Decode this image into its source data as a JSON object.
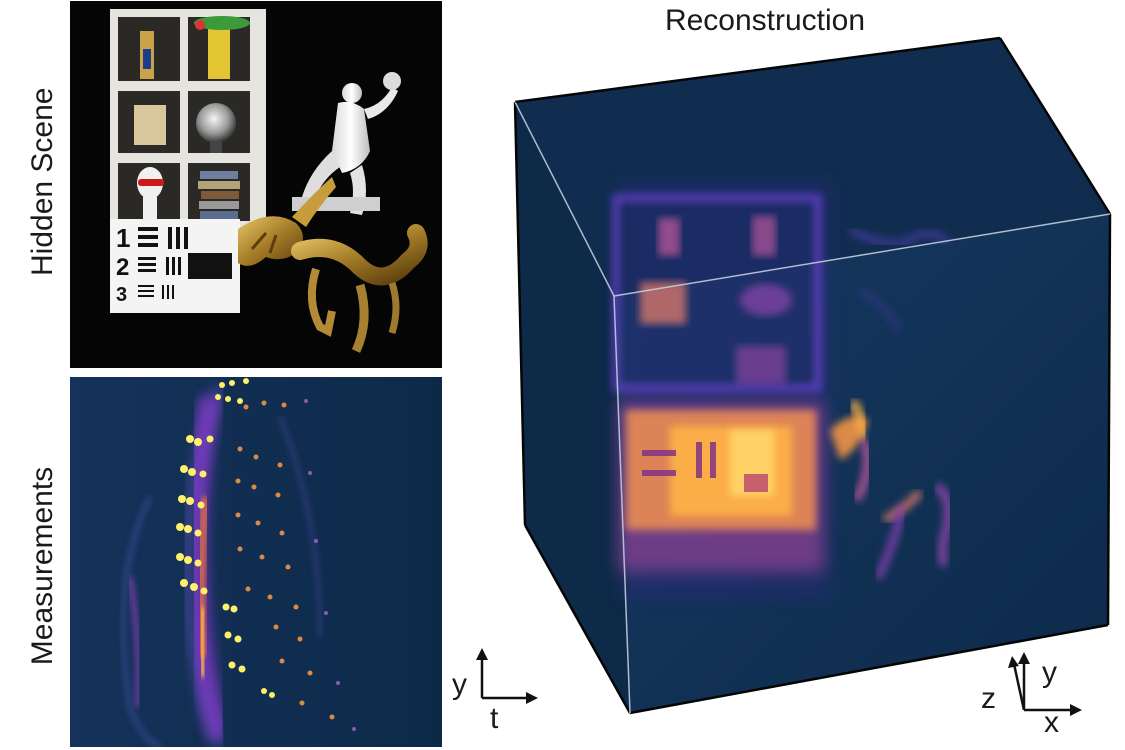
{
  "labels": {
    "hidden_scene": "Hidden Scene",
    "measurements": "Measurements",
    "reconstruction": "Reconstruction"
  },
  "scene": {
    "chart_numbers": [
      "1",
      "2",
      "3"
    ]
  },
  "axes_left": {
    "vertical": "y",
    "horizontal": "t"
  },
  "axes_right": {
    "depth": "z",
    "vertical": "y",
    "horizontal": "x"
  },
  "colors": {
    "colormap_dark": "#0e2a48",
    "colormap_mid": "#6a3bd6",
    "colormap_hot": "#ffb347",
    "colormap_peak": "#fff06a"
  }
}
